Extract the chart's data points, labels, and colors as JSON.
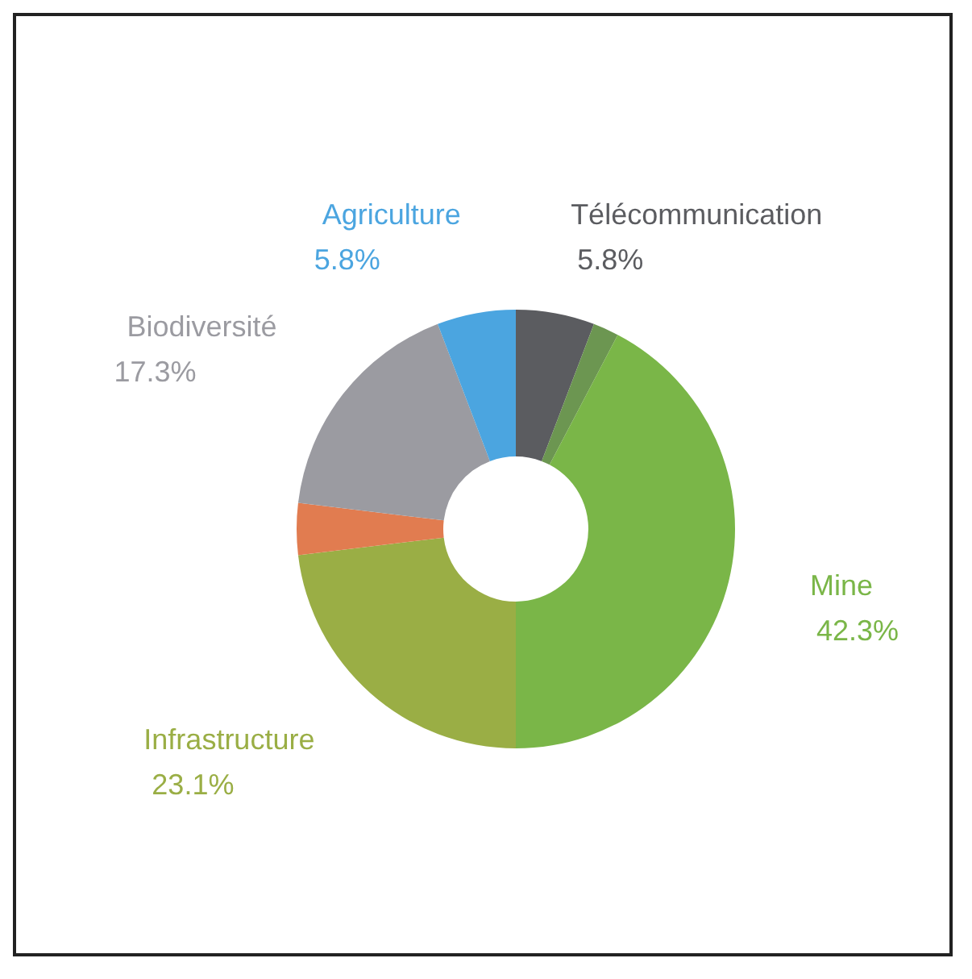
{
  "chart_data": {
    "type": "donut",
    "categories": [
      "Télécommunication",
      null,
      "Mine",
      "Infrastructure",
      null,
      "Biodiversité",
      "Agriculture"
    ],
    "values": [
      5.8,
      1.9,
      42.3,
      23.1,
      3.8,
      17.3,
      5.8
    ],
    "value_labels": [
      "5.8%",
      null,
      "42.3%",
      "23.1%",
      null,
      "17.3%",
      "5.8%"
    ],
    "colors": [
      "#5b5c60",
      "#6c9651",
      "#7ab648",
      "#9aae45",
      "#e17c50",
      "#9b9ba1",
      "#4ba5e0"
    ],
    "legend": false
  }
}
